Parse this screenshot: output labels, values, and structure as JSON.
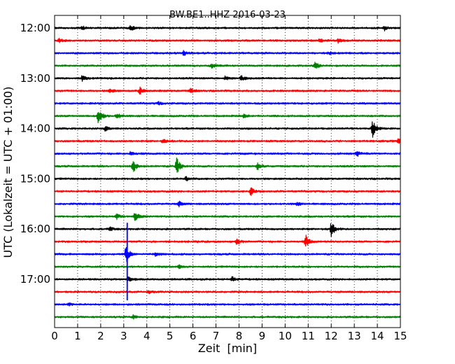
{
  "chart_data": {
    "type": "line",
    "title": "BW.BE1..HHZ 2016-03-23",
    "xlabel": "Zeit  [min]",
    "ylabel": "UTC (Lokalzeit = UTC + 01:00)",
    "xlim": [
      0,
      15
    ],
    "x_ticks": [
      0,
      1,
      2,
      3,
      4,
      5,
      6,
      7,
      8,
      9,
      10,
      11,
      12,
      13,
      14,
      15
    ],
    "x_tick_labels": [
      "0",
      "1",
      "2",
      "3",
      "4",
      "5",
      "6",
      "7",
      "8",
      "9",
      "10",
      "11",
      "12",
      "13",
      "14",
      "15"
    ],
    "y_tick_labels": [
      "12:00",
      "13:00",
      "14:00",
      "15:00",
      "16:00",
      "17:00"
    ],
    "grid": "vertical dotted",
    "trace_interval_min": 15,
    "trace_colors": [
      "#000000",
      "#ff0000",
      "#0000ff",
      "#008000"
    ],
    "traces": [
      {
        "start": "12:00",
        "events": [
          [
            1.2,
            0.3
          ],
          [
            3.3,
            0.6
          ],
          [
            14.3,
            0.5
          ]
        ]
      },
      {
        "start": "12:15",
        "events": [
          [
            0.2,
            0.4
          ],
          [
            11.5,
            0.5
          ],
          [
            12.3,
            0.4
          ]
        ]
      },
      {
        "start": "12:30",
        "events": [
          [
            5.6,
            0.5
          ],
          [
            11.9,
            0.3
          ]
        ]
      },
      {
        "start": "12:45",
        "events": [
          [
            6.8,
            0.5
          ],
          [
            11.3,
            0.7
          ]
        ]
      },
      {
        "start": "13:00",
        "events": [
          [
            1.2,
            0.5
          ],
          [
            7.4,
            0.4
          ],
          [
            8.1,
            0.5
          ]
        ]
      },
      {
        "start": "13:15",
        "events": [
          [
            2.4,
            0.5
          ],
          [
            3.7,
            0.8
          ],
          [
            5.9,
            0.5
          ]
        ]
      },
      {
        "start": "13:30",
        "events": [
          [
            4.5,
            0.3
          ]
        ]
      },
      {
        "start": "13:45",
        "events": [
          [
            1.9,
            2.0
          ],
          [
            2.7,
            0.7
          ],
          [
            8.2,
            0.4
          ]
        ]
      },
      {
        "start": "14:00",
        "events": [
          [
            2.2,
            0.5
          ],
          [
            13.8,
            1.7
          ]
        ]
      },
      {
        "start": "14:15",
        "events": [
          [
            4.7,
            0.4
          ],
          [
            14.9,
            0.5
          ]
        ]
      },
      {
        "start": "14:30",
        "events": [
          [
            3.3,
            0.4
          ],
          [
            13.1,
            0.6
          ]
        ]
      },
      {
        "start": "14:45",
        "events": [
          [
            3.4,
            1.5
          ],
          [
            5.3,
            1.8
          ],
          [
            8.8,
            0.8
          ]
        ]
      },
      {
        "start": "15:00",
        "events": [
          [
            5.7,
            0.5
          ]
        ]
      },
      {
        "start": "15:15",
        "events": [
          [
            8.5,
            0.9
          ]
        ]
      },
      {
        "start": "15:30",
        "events": [
          [
            5.4,
            0.5
          ],
          [
            10.5,
            0.4
          ]
        ]
      },
      {
        "start": "15:45",
        "events": [
          [
            2.7,
            0.5
          ],
          [
            3.5,
            1.2
          ]
        ]
      },
      {
        "start": "16:00",
        "events": [
          [
            2.4,
            0.4
          ],
          [
            12.0,
            1.5
          ]
        ]
      },
      {
        "start": "16:15",
        "events": [
          [
            7.9,
            0.8
          ],
          [
            10.9,
            1.3
          ]
        ]
      },
      {
        "start": "16:30",
        "events": [
          [
            3.1,
            1.8
          ],
          [
            4.4,
            0.4
          ]
        ]
      },
      {
        "start": "16:45",
        "events": [
          [
            5.4,
            0.3
          ]
        ]
      },
      {
        "start": "17:00",
        "events": [
          [
            3.2,
            0.5
          ],
          [
            7.7,
            0.6
          ]
        ]
      },
      {
        "start": "17:15",
        "events": [
          [
            4.1,
            0.3
          ]
        ]
      },
      {
        "start": "17:30",
        "events": [
          [
            0.6,
            0.3
          ]
        ]
      },
      {
        "start": "17:45",
        "events": [
          [
            3.4,
            0.4
          ]
        ]
      }
    ],
    "spikes": [
      {
        "time": 3.15,
        "from_trace": 16,
        "to_trace": 21,
        "color": "#0000ff"
      }
    ]
  }
}
